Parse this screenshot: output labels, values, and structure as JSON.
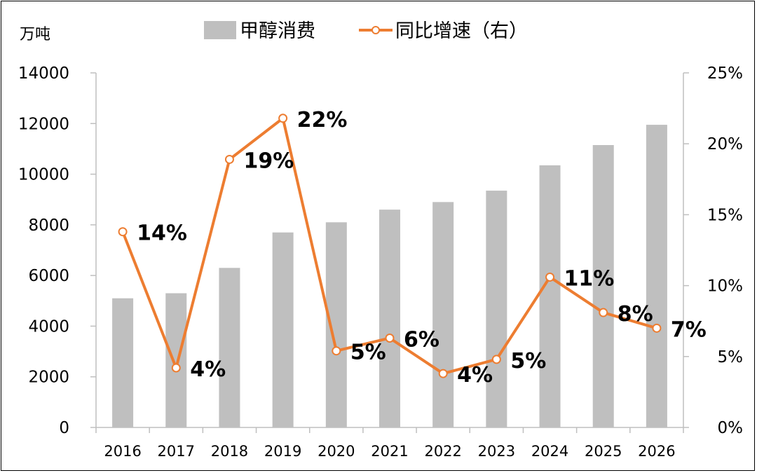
{
  "chart_data": {
    "type": "bar+line",
    "categories": [
      "2016",
      "2017",
      "2018",
      "2019",
      "2020",
      "2021",
      "2022",
      "2023",
      "2024",
      "2025",
      "2026"
    ],
    "series": [
      {
        "name": "甲醇消费",
        "type": "bar",
        "axis": "left",
        "color": "#bfbfbf",
        "values": [
          5100,
          5300,
          6300,
          7700,
          8100,
          8600,
          8900,
          9350,
          10350,
          11150,
          11950
        ]
      },
      {
        "name": "同比增速（右）",
        "type": "line",
        "axis": "right",
        "color": "#ed7d31",
        "values": [
          13.8,
          4.2,
          18.9,
          21.8,
          5.4,
          6.3,
          3.8,
          4.8,
          10.6,
          8.1,
          7.0
        ],
        "labels": [
          "14%",
          "4%",
          "19%",
          "22%",
          "5%",
          "6%",
          "4%",
          "5%",
          "11%",
          "8%",
          "7%"
        ]
      }
    ],
    "left_axis": {
      "unit": "万吨",
      "ylim": [
        0,
        14000
      ],
      "ticks": [
        0,
        2000,
        4000,
        6000,
        8000,
        10000,
        12000,
        14000
      ],
      "tick_labels": [
        "0",
        "2000",
        "4000",
        "6000",
        "8000",
        "10000",
        "12000",
        "14000"
      ]
    },
    "right_axis": {
      "ylim": [
        0,
        25
      ],
      "ticks": [
        0,
        5,
        10,
        15,
        20,
        25
      ],
      "tick_labels": [
        "0%",
        "5%",
        "10%",
        "15%",
        "20%",
        "25%"
      ]
    },
    "legend": {
      "position": "top",
      "items": [
        "甲醇消费",
        "同比增速（右）"
      ]
    },
    "grid": false
  }
}
